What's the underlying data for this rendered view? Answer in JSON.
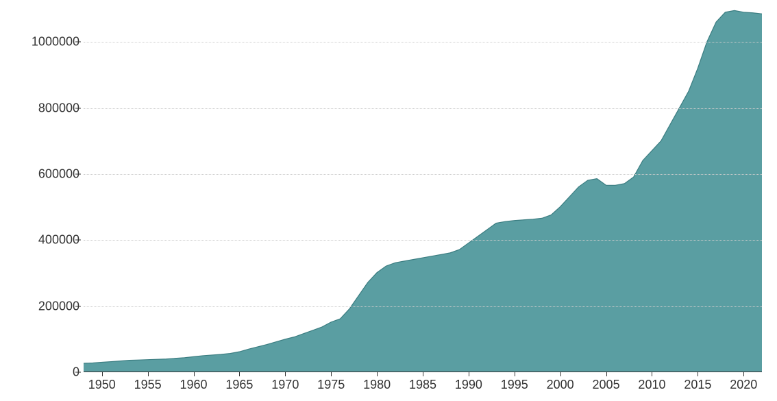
{
  "chart": {
    "type": "area",
    "background_color": "#ffffff",
    "grid_color": "#cccccc",
    "grid_style": "dotted",
    "axis_color": "#333333",
    "tick_font_size": 18,
    "tick_font_color": "#333333",
    "area_fill_color": "#5a9ea2",
    "area_fill_opacity": 1.0,
    "area_stroke_color": "#3b7d81",
    "area_stroke_width": 1.2,
    "x": {
      "min": 1948,
      "max": 2022,
      "ticks": [
        1950,
        1955,
        1960,
        1965,
        1970,
        1975,
        1980,
        1985,
        1990,
        1995,
        2000,
        2005,
        2010,
        2015,
        2020
      ]
    },
    "y": {
      "min": 0,
      "max": 1100000,
      "ticks": [
        0,
        200000,
        400000,
        600000,
        800000,
        1000000
      ]
    },
    "series": {
      "x": [
        1948,
        1949,
        1950,
        1951,
        1952,
        1953,
        1954,
        1955,
        1956,
        1957,
        1958,
        1959,
        1960,
        1961,
        1962,
        1963,
        1964,
        1965,
        1966,
        1967,
        1968,
        1969,
        1970,
        1971,
        1972,
        1973,
        1974,
        1975,
        1976,
        1977,
        1978,
        1979,
        1980,
        1981,
        1982,
        1983,
        1984,
        1985,
        1986,
        1987,
        1988,
        1989,
        1990,
        1991,
        1992,
        1993,
        1994,
        1995,
        1996,
        1997,
        1998,
        1999,
        2000,
        2001,
        2002,
        2003,
        2004,
        2005,
        2006,
        2007,
        2008,
        2009,
        2010,
        2011,
        2012,
        2013,
        2014,
        2015,
        2016,
        2017,
        2018,
        2019,
        2020,
        2021,
        2022
      ],
      "y": [
        25000,
        26000,
        28000,
        30000,
        32000,
        34000,
        35000,
        36000,
        37000,
        38000,
        40000,
        42000,
        45000,
        48000,
        50000,
        52000,
        55000,
        60000,
        68000,
        75000,
        82000,
        90000,
        98000,
        105000,
        115000,
        125000,
        135000,
        150000,
        160000,
        190000,
        230000,
        270000,
        300000,
        320000,
        330000,
        335000,
        340000,
        345000,
        350000,
        355000,
        360000,
        370000,
        390000,
        410000,
        430000,
        450000,
        455000,
        458000,
        460000,
        462000,
        465000,
        475000,
        500000,
        530000,
        560000,
        580000,
        585000,
        565000,
        565000,
        570000,
        590000,
        640000,
        670000,
        700000,
        750000,
        800000,
        850000,
        920000,
        1000000,
        1060000,
        1090000,
        1095000,
        1090000,
        1088000,
        1085000
      ]
    }
  }
}
